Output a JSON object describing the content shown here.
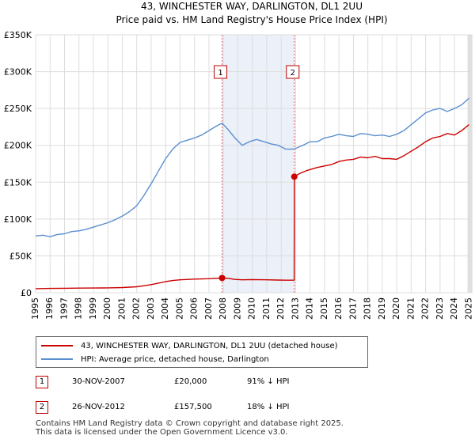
{
  "chart_data": {
    "type": "line",
    "title": "43, WINCHESTER WAY, DARLINGTON, DL1 2UU",
    "subtitle": "Price paid vs. HM Land Registry's House Price Index (HPI)",
    "xlim": [
      1995,
      2025.2
    ],
    "ylim": [
      0,
      350000
    ],
    "x_ticks": [
      "1995",
      "1996",
      "1997",
      "1998",
      "1999",
      "2000",
      "2001",
      "2002",
      "2003",
      "2004",
      "2005",
      "2006",
      "2007",
      "2008",
      "2009",
      "2010",
      "2011",
      "2012",
      "2013",
      "2014",
      "2015",
      "2016",
      "2017",
      "2018",
      "2019",
      "2020",
      "2021",
      "2022",
      "2023",
      "2024",
      "2025"
    ],
    "y_ticks": [
      {
        "value": 0,
        "label": "£0"
      },
      {
        "value": 50000,
        "label": "£50K"
      },
      {
        "value": 100000,
        "label": "£100K"
      },
      {
        "value": 150000,
        "label": "£150K"
      },
      {
        "value": 200000,
        "label": "£200K"
      },
      {
        "value": 250000,
        "label": "£250K"
      },
      {
        "value": 300000,
        "label": "£300K"
      },
      {
        "value": 350000,
        "label": "£350K"
      }
    ],
    "grid": true,
    "series": [
      {
        "name": "43, WINCHESTER WAY, DARLINGTON, DL1 2UU (detached house)",
        "color": "#cc0000",
        "x": [
          1995.0,
          1996.0,
          1997.0,
          1998.0,
          1999.0,
          2000.0,
          2001.0,
          2002.0,
          2002.5,
          2003.0,
          2003.5,
          2004.0,
          2004.5,
          2005.0,
          2006.0,
          2007.0,
          2007.91,
          2008.3,
          2008.8,
          2009.3,
          2010.0,
          2011.0,
          2011.7,
          2012.3,
          2012.9,
          2012.91,
          2013.3,
          2013.8,
          2014.5,
          2015.0,
          2015.5,
          2016.0,
          2016.5,
          2017.0,
          2017.5,
          2018.0,
          2018.5,
          2019.0,
          2019.5,
          2020.0,
          2020.5,
          2021.0,
          2021.5,
          2022.0,
          2022.5,
          2023.0,
          2023.5,
          2024.0,
          2024.5,
          2025.0
        ],
        "y": [
          5500,
          5800,
          6000,
          6200,
          6300,
          6500,
          7000,
          8000,
          9500,
          11000,
          13000,
          15000,
          16500,
          17500,
          18500,
          19000,
          20000,
          19500,
          18000,
          17500,
          17800,
          17500,
          17200,
          17000,
          17000,
          157500,
          162000,
          166000,
          170000,
          172000,
          174000,
          178000,
          180000,
          181000,
          184000,
          183000,
          185000,
          182000,
          182000,
          181000,
          186000,
          192000,
          198000,
          205000,
          210000,
          212000,
          216000,
          214000,
          220000,
          228000
        ]
      },
      {
        "name": "HPI: Average price, detached house, Darlington",
        "color": "#5b8fd0",
        "x": [
          1995.0,
          1995.5,
          1996.0,
          1996.5,
          1997.0,
          1997.5,
          1998.0,
          1998.5,
          1999.0,
          1999.5,
          2000.0,
          2000.5,
          2001.0,
          2001.5,
          2002.0,
          2002.5,
          2003.0,
          2003.5,
          2004.0,
          2004.5,
          2005.0,
          2005.5,
          2006.0,
          2006.5,
          2007.0,
          2007.5,
          2007.91,
          2008.3,
          2008.8,
          2009.3,
          2009.8,
          2010.3,
          2010.8,
          2011.3,
          2011.8,
          2012.3,
          2012.91,
          2013.5,
          2014.0,
          2014.5,
          2015.0,
          2015.5,
          2016.0,
          2016.5,
          2017.0,
          2017.5,
          2018.0,
          2018.5,
          2019.0,
          2019.5,
          2020.0,
          2020.5,
          2021.0,
          2021.5,
          2022.0,
          2022.5,
          2023.0,
          2023.5,
          2024.0,
          2024.5,
          2025.0
        ],
        "y": [
          77000,
          78000,
          76000,
          79000,
          80000,
          83000,
          84000,
          86000,
          89000,
          92000,
          95000,
          99000,
          104000,
          110000,
          118000,
          132000,
          148000,
          165000,
          182000,
          195000,
          204000,
          207000,
          210000,
          214000,
          220000,
          226000,
          230000,
          222000,
          210000,
          200000,
          205000,
          208000,
          205000,
          202000,
          200000,
          195000,
          195000,
          200000,
          205000,
          205000,
          210000,
          212000,
          215000,
          213000,
          212000,
          216000,
          215000,
          213000,
          214000,
          212000,
          215000,
          220000,
          228000,
          236000,
          244000,
          248000,
          250000,
          246000,
          250000,
          255000,
          264000
        ]
      }
    ],
    "transactions": [
      {
        "marker": "1",
        "x": 2007.91,
        "y": 20000
      },
      {
        "marker": "2",
        "x": 2012.91,
        "y": 157500
      }
    ]
  },
  "legend": {
    "property_label": "43, WINCHESTER WAY, DARLINGTON, DL1 2UU (detached house)",
    "hpi_label": "HPI: Average price, detached house, Darlington",
    "property_color": "#cc0000",
    "hpi_color": "#5b8fd0"
  },
  "transactions_table": [
    {
      "marker": "1",
      "date": "30-NOV-2007",
      "price": "£20,000",
      "hpi_change": "91% ↓ HPI"
    },
    {
      "marker": "2",
      "date": "26-NOV-2012",
      "price": "£157,500",
      "hpi_change": "18% ↓ HPI"
    }
  ],
  "footer": {
    "line1": "Contains HM Land Registry data © Crown copyright and database right 2025.",
    "line2": "This data is licensed under the Open Government Licence v3.0."
  }
}
